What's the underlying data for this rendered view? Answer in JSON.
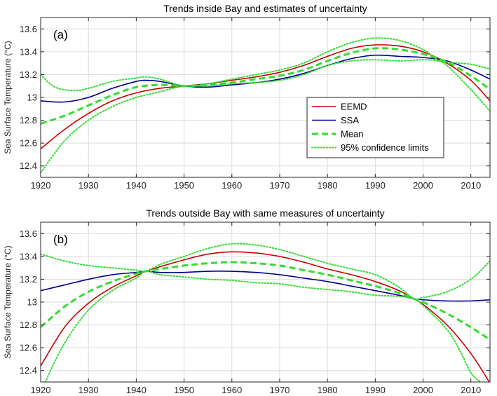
{
  "chart_data": [
    {
      "type": "line",
      "title": "Trends inside Bay and estimates of uncertainty",
      "panel_label": "(a)",
      "ylabel": "Sea Surface Temperature (°C)",
      "xlabel": "",
      "xlim": [
        1920,
        2014
      ],
      "ylim": [
        12.3,
        13.7
      ],
      "xticks": [
        1920,
        1930,
        1940,
        1950,
        1960,
        1970,
        1980,
        1990,
        2000,
        2010
      ],
      "yticks": [
        12.4,
        12.6,
        12.8,
        13.0,
        13.2,
        13.4,
        13.6
      ],
      "ytick_labels": [
        "12.4",
        "12.6",
        "12.8",
        "13",
        "13.2",
        "13.4",
        "13.6"
      ],
      "grid": true,
      "legend_position": "lower-right",
      "series": [
        {
          "name": "EEMD",
          "color": "#cc0000",
          "style": "solid",
          "x": [
            1920,
            1925,
            1930,
            1935,
            1940,
            1945,
            1950,
            1955,
            1960,
            1965,
            1970,
            1975,
            1980,
            1985,
            1990,
            1995,
            2000,
            2005,
            2010,
            2014
          ],
          "y": [
            12.55,
            12.72,
            12.86,
            12.97,
            13.04,
            13.08,
            13.1,
            13.12,
            13.15,
            13.18,
            13.22,
            13.28,
            13.36,
            13.43,
            13.46,
            13.45,
            13.4,
            13.3,
            13.15,
            12.97
          ]
        },
        {
          "name": "SSA",
          "color": "#00008b",
          "style": "solid",
          "x": [
            1920,
            1925,
            1930,
            1935,
            1940,
            1942,
            1945,
            1950,
            1955,
            1960,
            1965,
            1970,
            1975,
            1980,
            1985,
            1990,
            1995,
            2000,
            2005,
            2010,
            2014
          ],
          "y": [
            12.97,
            12.96,
            13.0,
            13.08,
            13.14,
            13.15,
            13.14,
            13.1,
            13.09,
            13.11,
            13.13,
            13.16,
            13.21,
            13.28,
            13.34,
            13.37,
            13.36,
            13.35,
            13.32,
            13.24,
            13.16
          ]
        },
        {
          "name": "Mean",
          "color": "#33dd33",
          "style": "dashed",
          "x": [
            1920,
            1925,
            1930,
            1935,
            1940,
            1945,
            1950,
            1955,
            1960,
            1965,
            1970,
            1975,
            1980,
            1985,
            1990,
            1995,
            2000,
            2005,
            2010,
            2014
          ],
          "y": [
            12.77,
            12.84,
            12.93,
            13.02,
            13.09,
            13.11,
            13.1,
            13.11,
            13.13,
            13.16,
            13.19,
            13.24,
            13.32,
            13.39,
            13.43,
            13.42,
            13.38,
            13.31,
            13.19,
            13.07
          ]
        },
        {
          "name": "95% confidence limits",
          "color": "#33dd33",
          "style": "dotted",
          "x": [
            1920,
            1923,
            1927,
            1930,
            1935,
            1940,
            1942,
            1945,
            1950,
            1955,
            1960,
            1965,
            1970,
            1975,
            1980,
            1985,
            1990,
            1995,
            2000,
            2003,
            2005,
            2010,
            2014
          ],
          "y": [
            13.2,
            13.09,
            13.06,
            13.08,
            13.14,
            13.17,
            13.18,
            13.16,
            13.1,
            13.12,
            13.16,
            13.2,
            13.24,
            13.3,
            13.4,
            13.48,
            13.52,
            13.5,
            13.42,
            13.33,
            13.31,
            13.29,
            13.25
          ]
        },
        {
          "name": "",
          "color": "#33dd33",
          "style": "dotted",
          "x": [
            1920,
            1925,
            1930,
            1935,
            1940,
            1945,
            1950,
            1955,
            1960,
            1965,
            1970,
            1975,
            1980,
            1985,
            1990,
            1995,
            2000,
            2003,
            2005,
            2010,
            2014
          ],
          "y": [
            12.34,
            12.62,
            12.8,
            12.92,
            13.0,
            13.05,
            13.1,
            13.1,
            13.12,
            13.13,
            13.15,
            13.2,
            13.28,
            13.32,
            13.33,
            13.32,
            13.33,
            13.32,
            13.28,
            13.07,
            12.88
          ]
        }
      ]
    },
    {
      "type": "line",
      "title": "Trends outside Bay with same measures of uncertainty",
      "panel_label": "(b)",
      "ylabel": "Sea Surface Temperature (°C)",
      "xlabel": "",
      "xlim": [
        1920,
        2014
      ],
      "ylim": [
        12.3,
        13.7
      ],
      "xticks": [
        1920,
        1930,
        1940,
        1950,
        1960,
        1970,
        1980,
        1990,
        2000,
        2010
      ],
      "yticks": [
        12.4,
        12.6,
        12.8,
        13.0,
        13.2,
        13.4,
        13.6
      ],
      "ytick_labels": [
        "12.4",
        "12.6",
        "12.8",
        "13",
        "13.2",
        "13.4",
        "13.6"
      ],
      "grid": true,
      "series": [
        {
          "name": "EEMD",
          "color": "#cc0000",
          "style": "solid",
          "x": [
            1920,
            1925,
            1930,
            1935,
            1940,
            1942,
            1945,
            1950,
            1955,
            1960,
            1965,
            1970,
            1975,
            1980,
            1985,
            1990,
            1995,
            1998,
            2000,
            2005,
            2010,
            2014
          ],
          "y": [
            12.44,
            12.78,
            12.99,
            13.13,
            13.23,
            13.27,
            13.31,
            13.37,
            13.42,
            13.44,
            13.43,
            13.4,
            13.35,
            13.29,
            13.24,
            13.18,
            13.1,
            13.03,
            12.98,
            12.8,
            12.55,
            12.29
          ]
        },
        {
          "name": "SSA",
          "color": "#00008b",
          "style": "solid",
          "x": [
            1920,
            1925,
            1930,
            1935,
            1940,
            1942,
            1945,
            1950,
            1955,
            1960,
            1965,
            1970,
            1975,
            1980,
            1985,
            1990,
            1995,
            1998,
            2000,
            2005,
            2010,
            2014
          ],
          "y": [
            13.1,
            13.15,
            13.2,
            13.24,
            13.26,
            13.27,
            13.26,
            13.26,
            13.27,
            13.27,
            13.26,
            13.24,
            13.21,
            13.18,
            13.14,
            13.1,
            13.06,
            13.03,
            13.02,
            13.01,
            13.01,
            13.02
          ]
        },
        {
          "name": "Mean",
          "color": "#33dd33",
          "style": "dashed",
          "x": [
            1920,
            1925,
            1930,
            1935,
            1940,
            1942,
            1945,
            1950,
            1955,
            1960,
            1965,
            1970,
            1975,
            1980,
            1985,
            1990,
            1995,
            1998,
            2000,
            2005,
            2010,
            2014
          ],
          "y": [
            12.78,
            12.96,
            13.09,
            13.18,
            13.25,
            13.27,
            13.29,
            13.32,
            13.34,
            13.35,
            13.34,
            13.32,
            13.28,
            13.24,
            13.19,
            13.14,
            13.08,
            13.03,
            13.0,
            12.9,
            12.78,
            12.67
          ]
        },
        {
          "name": "95% confidence limits",
          "color": "#33dd33",
          "style": "dotted",
          "x": [
            1920,
            1925,
            1930,
            1935,
            1940,
            1942,
            1945,
            1950,
            1955,
            1960,
            1965,
            1970,
            1975,
            1980,
            1985,
            1990,
            1995,
            1998,
            2000,
            2005,
            2010,
            2014
          ],
          "y": [
            13.42,
            13.36,
            13.32,
            13.3,
            13.28,
            13.27,
            13.33,
            13.4,
            13.47,
            13.51,
            13.5,
            13.46,
            13.4,
            13.34,
            13.29,
            13.24,
            13.13,
            13.03,
            13.04,
            13.09,
            13.2,
            13.36
          ]
        },
        {
          "name": "",
          "color": "#33dd33",
          "style": "dotted",
          "x": [
            1920,
            1921,
            1925,
            1930,
            1935,
            1940,
            1942,
            1945,
            1950,
            1955,
            1960,
            1965,
            1970,
            1975,
            1980,
            1985,
            1990,
            1995,
            1998,
            2000,
            2005,
            2008,
            2010,
            2012
          ],
          "y": [
            12.15,
            12.3,
            12.64,
            12.93,
            13.1,
            13.21,
            13.27,
            13.24,
            13.22,
            13.2,
            13.19,
            13.17,
            13.16,
            13.13,
            13.11,
            13.09,
            13.06,
            13.05,
            13.03,
            12.97,
            12.76,
            12.55,
            12.38,
            12.3
          ]
        }
      ]
    }
  ]
}
